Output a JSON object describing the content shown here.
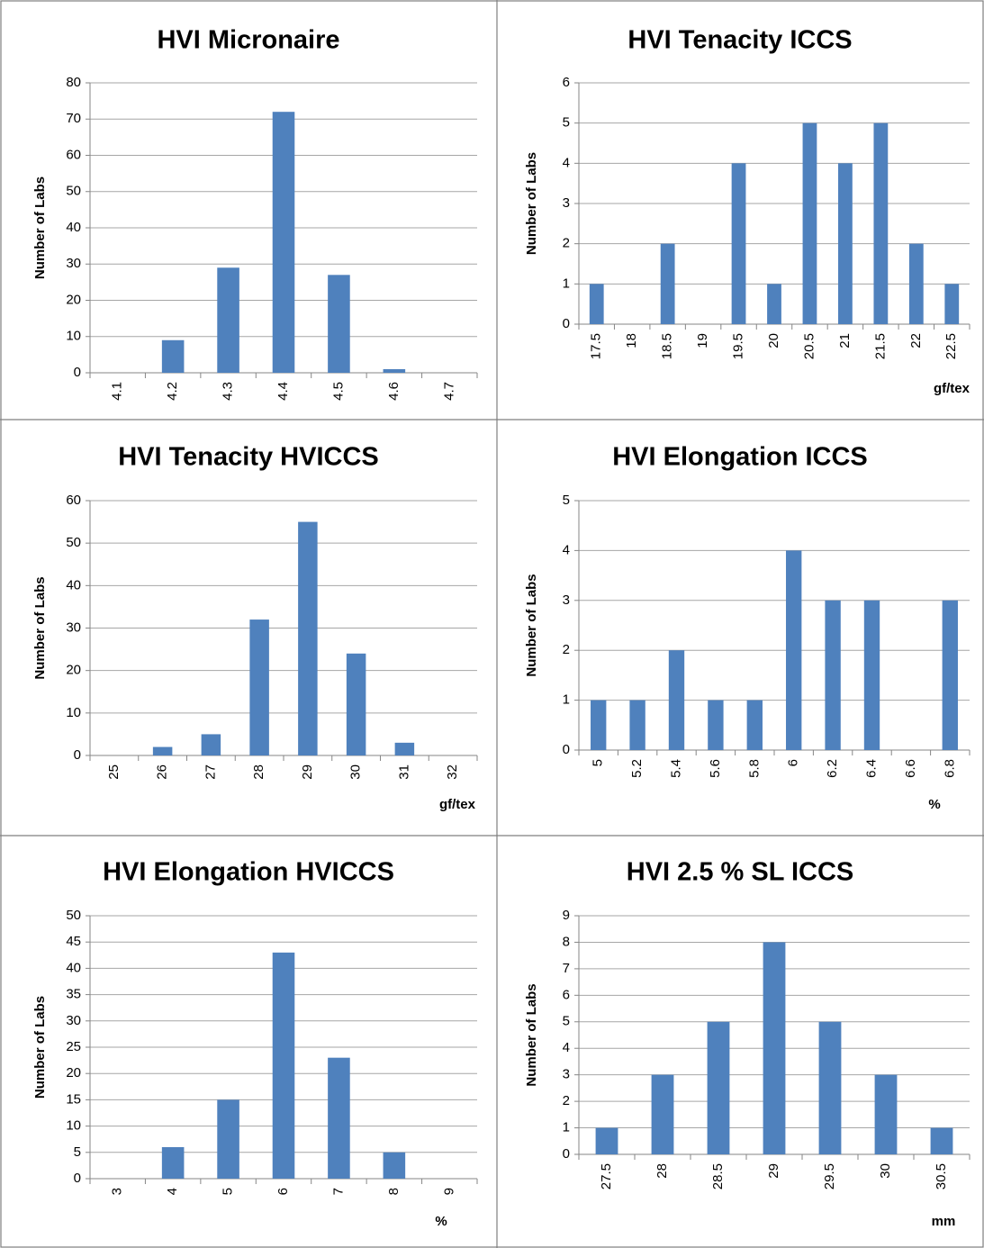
{
  "chart_data": [
    {
      "type": "bar",
      "title": "HVI Micronaire",
      "ylabel": "Number of Labs",
      "categories": [
        "4.1",
        "4.2",
        "4.3",
        "4.4",
        "4.5",
        "4.6",
        "4.7"
      ],
      "values": [
        0,
        9,
        29,
        72,
        27,
        1,
        0
      ],
      "color": "#4f81bd",
      "ylim": [
        0,
        80
      ],
      "yticks": [
        0,
        10,
        20,
        30,
        40,
        50,
        60,
        70,
        80
      ],
      "grid": true
    },
    {
      "type": "bar",
      "title": "HVI Tenacity ICCS",
      "ylabel": "Number of Labs",
      "xlabel": "gf/tex",
      "categories": [
        "17.5",
        "18",
        "18.5",
        "19",
        "19.5",
        "20",
        "20.5",
        "21",
        "21.5",
        "22",
        "22.5"
      ],
      "values": [
        1,
        0,
        2,
        0,
        4,
        1,
        5,
        4,
        5,
        2,
        1
      ],
      "color": "#4f81bd",
      "ylim": [
        0,
        6
      ],
      "yticks": [
        0,
        1,
        2,
        3,
        4,
        5,
        6
      ],
      "grid": true
    },
    {
      "type": "bar",
      "title": "HVI Tenacity HVICCS",
      "ylabel": "Number of Labs",
      "xlabel": "gf/tex",
      "categories": [
        "25",
        "26",
        "27",
        "28",
        "29",
        "30",
        "31",
        "32"
      ],
      "values": [
        0,
        2,
        5,
        32,
        55,
        24,
        3,
        0
      ],
      "color": "#4f81bd",
      "ylim": [
        0,
        60
      ],
      "yticks": [
        0,
        10,
        20,
        30,
        40,
        50,
        60
      ],
      "grid": true
    },
    {
      "type": "bar",
      "title": "HVI Elongation ICCS",
      "ylabel": "Number of Labs",
      "xlabel": "%",
      "categories": [
        "5",
        "5.2",
        "5.4",
        "5.6",
        "5.8",
        "6",
        "6.2",
        "6.4",
        "6.6",
        "6.8"
      ],
      "values": [
        1,
        1,
        2,
        1,
        1,
        4,
        3,
        3,
        0,
        3
      ],
      "color": "#4f81bd",
      "ylim": [
        0,
        5
      ],
      "yticks": [
        0,
        1,
        2,
        3,
        4,
        5
      ],
      "grid": true
    },
    {
      "type": "bar",
      "title": "HVI Elongation HVICCS",
      "ylabel": "Number of Labs",
      "xlabel": "%",
      "categories": [
        "3",
        "4",
        "5",
        "6",
        "7",
        "8",
        "9"
      ],
      "values": [
        0,
        6,
        15,
        43,
        23,
        5,
        0
      ],
      "color": "#4f81bd",
      "ylim": [
        0,
        50
      ],
      "yticks": [
        0,
        5,
        10,
        15,
        20,
        25,
        30,
        35,
        40,
        45,
        50
      ],
      "grid": true
    },
    {
      "type": "bar",
      "title": "HVI 2.5 % SL ICCS",
      "ylabel": "Number of Labs",
      "xlabel": "mm",
      "categories": [
        "27.5",
        "28",
        "28.5",
        "29",
        "29.5",
        "30",
        "30.5"
      ],
      "values": [
        1,
        3,
        5,
        8,
        5,
        3,
        1
      ],
      "color": "#4f81bd",
      "ylim": [
        0,
        9
      ],
      "yticks": [
        0,
        1,
        2,
        3,
        4,
        5,
        6,
        7,
        8,
        9
      ],
      "grid": true
    }
  ]
}
